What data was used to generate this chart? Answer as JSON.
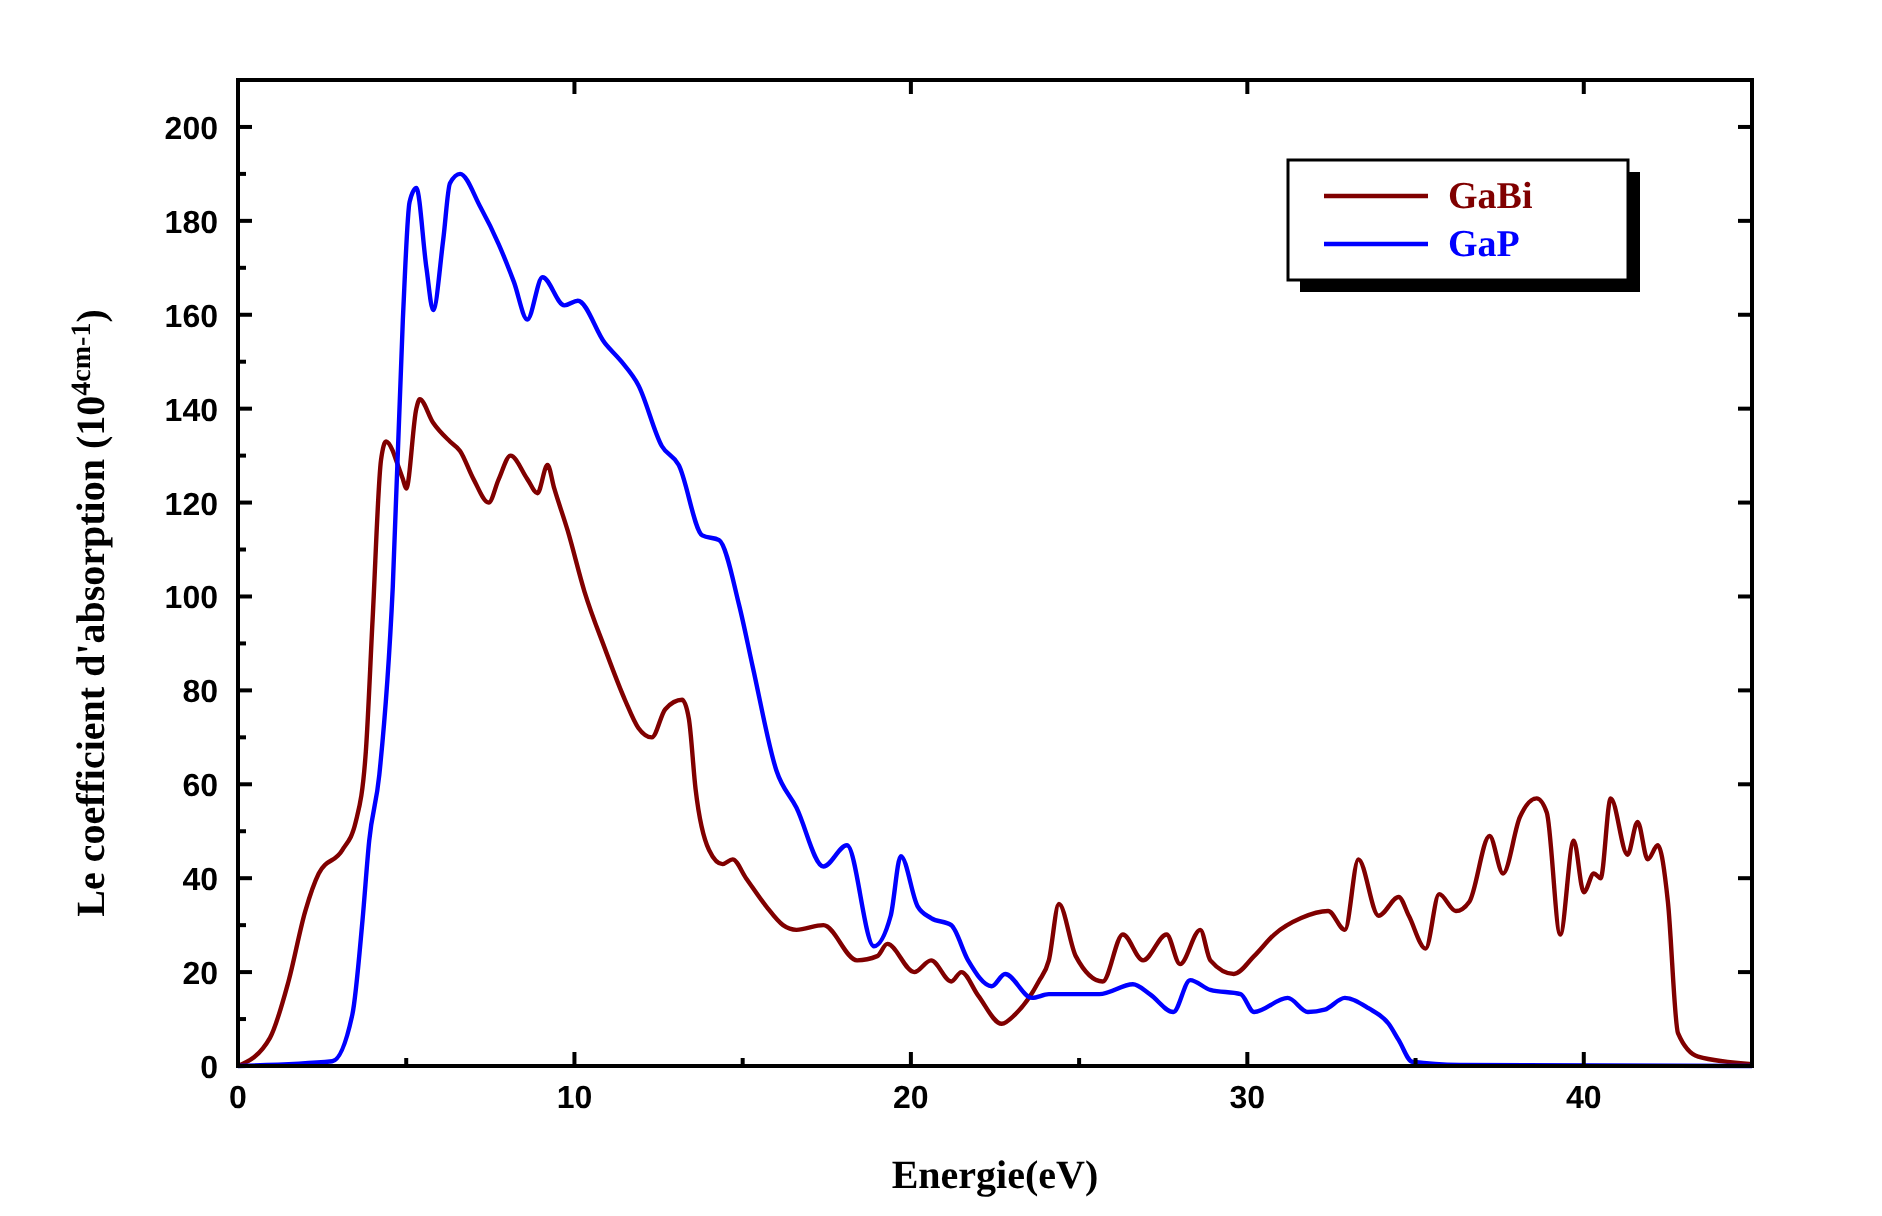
{
  "chart_data": {
    "type": "line",
    "xlabel": "Energie(eV)",
    "ylabel": "Le coefficient d'absorption (10$^{4cm-1}$)",
    "xlim": [
      0,
      45
    ],
    "ylim": [
      0,
      210
    ],
    "xticks": [
      0,
      10,
      20,
      30,
      40
    ],
    "yticks": [
      0,
      20,
      40,
      60,
      80,
      100,
      120,
      140,
      160,
      180,
      200
    ],
    "grid": false,
    "legend": "top right",
    "marker": "none",
    "line_style": "solid",
    "series": [
      {
        "name": "GaBi",
        "color": "#800000",
        "x": [
          0,
          0.95,
          1.5,
          2,
          2.4,
          3.1,
          3.5,
          3.8,
          4,
          4.25,
          4.4,
          4.6,
          4.7,
          4.9,
          5,
          5.3,
          5.4,
          5.8,
          6.3,
          6.6,
          7,
          7.45,
          7.75,
          8.1,
          8.6,
          8.9,
          9.2,
          9.4,
          9.8,
          10.3,
          10.9,
          11.5,
          11.9,
          12.3,
          12.7,
          13.2,
          13.4,
          13.6,
          14,
          14.4,
          14.7,
          15.1,
          15.7,
          16.2,
          16.6,
          17.4,
          18.4,
          19,
          19.3,
          20.1,
          20.6,
          21.2,
          21.5,
          22,
          22.7,
          23.1,
          23.8,
          24.1,
          24.4,
          24.9,
          25.7,
          26.3,
          26.9,
          27.6,
          28,
          28.6,
          28.9,
          29.6,
          30.2,
          30.8,
          31.6,
          32.4,
          32.9,
          33.3,
          33.9,
          34.5,
          34.8,
          35.3,
          35.7,
          36.2,
          36.6,
          37.2,
          37.6,
          38.1,
          38.6,
          38.9,
          39.3,
          39.7,
          40,
          40.3,
          40.5,
          40.8,
          41.3,
          41.6,
          41.9,
          42.2,
          42.5,
          42.8,
          43.4,
          45
        ],
        "values": [
          0,
          6,
          18,
          33,
          41,
          46,
          52,
          67,
          95,
          129,
          133,
          131,
          129,
          125,
          123,
          140,
          142,
          137,
          133,
          131,
          125,
          120,
          125,
          130,
          125,
          122,
          128,
          123,
          114,
          101,
          89,
          78,
          72,
          70,
          76,
          78,
          74,
          59,
          46,
          43,
          44,
          40,
          34,
          30,
          29,
          30,
          22.5,
          23.4,
          26,
          20,
          22.5,
          18,
          20,
          15,
          9,
          11,
          18,
          22.5,
          34.5,
          23.4,
          18,
          28,
          22.5,
          28,
          21.7,
          29,
          22.5,
          19.6,
          23.4,
          28,
          31.5,
          33,
          29,
          44,
          32,
          36,
          32,
          25,
          36.6,
          33,
          35,
          49,
          41,
          53,
          57,
          54,
          28,
          48,
          37,
          41,
          40,
          57,
          45,
          52,
          44,
          47,
          35,
          7,
          2,
          0.4
        ]
      },
      {
        "name": "GaP",
        "color": "#0000ff",
        "x": [
          0,
          2.8,
          3.4,
          3.7,
          3.9,
          4.2,
          4.6,
          4.9,
          5.1,
          5.3,
          5.6,
          5.8,
          6.1,
          6.3,
          6.6,
          7.2,
          7.75,
          8.2,
          8.6,
          9.05,
          9.7,
          10.1,
          10.9,
          11.4,
          11.9,
          12.6,
          13.1,
          13.8,
          14.3,
          14.9,
          15.3,
          16,
          16.6,
          17.4,
          18.1,
          18.9,
          19.4,
          19.7,
          20.2,
          20.6,
          21.2,
          21.7,
          22.4,
          22.8,
          23.6,
          24.1,
          25.6,
          26.6,
          27.1,
          27.8,
          28.3,
          28.9,
          29.8,
          30.2,
          31.2,
          31.8,
          32.3,
          32.9,
          33.6,
          34.2,
          34.5,
          34.9,
          36.3,
          45
        ],
        "values": [
          0,
          1,
          11,
          31,
          48,
          62,
          102,
          159,
          184,
          187,
          170,
          161,
          176,
          188,
          190,
          183,
          175,
          167,
          159,
          168,
          162,
          163,
          154,
          150,
          145,
          132,
          128,
          113,
          112,
          98,
          85,
          63,
          55,
          42.5,
          47,
          25.5,
          32,
          44.7,
          34,
          31.5,
          30,
          22.5,
          17,
          19.6,
          14.5,
          15.3,
          15.3,
          17.4,
          15.3,
          11.5,
          18.3,
          16.2,
          15.3,
          11.5,
          14.5,
          11.5,
          12,
          14.5,
          12.3,
          9,
          5.5,
          0.9,
          0.2,
          0
        ]
      }
    ]
  }
}
